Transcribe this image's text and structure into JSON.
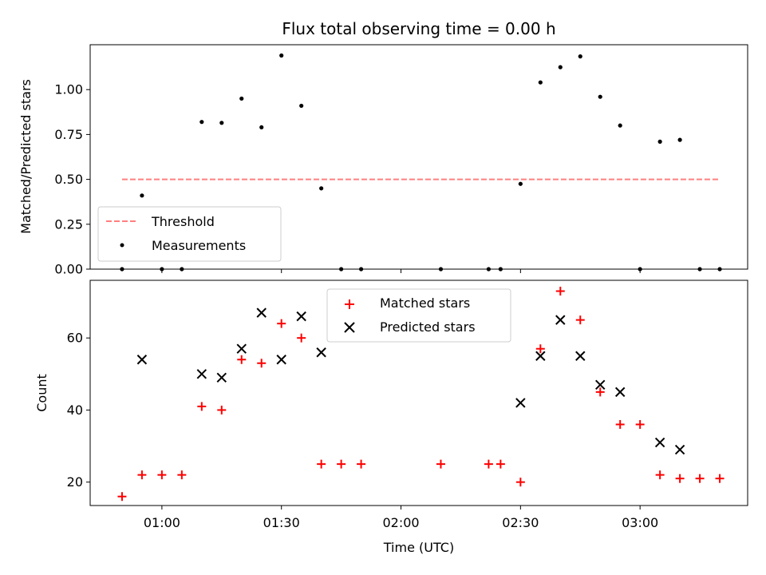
{
  "chart_data": [
    {
      "type": "scatter",
      "title": "Flux total observing time = 0.00 h",
      "ylabel": "Matched/Predicted stars",
      "xlabel": "",
      "ylim": [
        0,
        1.25
      ],
      "xlim": [
        "00:42",
        "03:27"
      ],
      "yticks": [
        0.0,
        0.25,
        0.5,
        0.75,
        1.0
      ],
      "ytick_labels": [
        "0.00",
        "0.25",
        "0.50",
        "0.75",
        "1.00"
      ],
      "grid": false,
      "legend_position": "lower-left",
      "threshold": {
        "name": "Threshold",
        "value": 0.5,
        "x_start": "00:50",
        "x_end": "03:20",
        "color": "#ff7f7f",
        "style": "dashed"
      },
      "series": [
        {
          "name": "Measurements",
          "color": "#000000",
          "marker": "dot",
          "x": [
            "00:50",
            "00:55",
            "01:00",
            "01:05",
            "01:10",
            "01:15",
            "01:20",
            "01:25",
            "01:30",
            "01:35",
            "01:40",
            "01:45",
            "01:50",
            "02:10",
            "02:22",
            "02:25",
            "02:30",
            "02:35",
            "02:40",
            "02:45",
            "02:50",
            "02:55",
            "03:00",
            "03:05",
            "03:10",
            "03:15",
            "03:20"
          ],
          "y": [
            0.0,
            0.41,
            0.0,
            0.0,
            0.82,
            0.815,
            0.95,
            0.79,
            1.19,
            0.91,
            0.45,
            0.0,
            0.0,
            0.0,
            0.0,
            0.0,
            0.475,
            1.04,
            1.125,
            1.185,
            0.96,
            0.8,
            0.0,
            0.71,
            0.72,
            0.0,
            0.0
          ]
        }
      ]
    },
    {
      "type": "scatter",
      "title": "",
      "ylabel": "Count",
      "xlabel": "Time (UTC)",
      "ylim": [
        13.5,
        76
      ],
      "xlim": [
        "00:42",
        "03:27"
      ],
      "yticks": [
        20,
        40,
        60
      ],
      "ytick_labels": [
        "20",
        "40",
        "60"
      ],
      "xticks": [
        "01:00",
        "01:30",
        "02:00",
        "02:30",
        "03:00"
      ],
      "grid": false,
      "legend_position": "upper-center",
      "series": [
        {
          "name": "Matched stars",
          "color": "#ff0000",
          "marker": "plus",
          "x": [
            "00:50",
            "00:55",
            "01:00",
            "01:05",
            "01:10",
            "01:15",
            "01:20",
            "01:25",
            "01:30",
            "01:35",
            "01:40",
            "01:45",
            "01:50",
            "02:10",
            "02:22",
            "02:25",
            "02:30",
            "02:35",
            "02:40",
            "02:45",
            "02:50",
            "02:55",
            "03:00",
            "03:05",
            "03:10",
            "03:15",
            "03:20"
          ],
          "y": [
            16,
            22,
            22,
            22,
            41,
            40,
            54,
            53,
            64,
            60,
            25,
            25,
            25,
            25,
            25,
            25,
            20,
            57,
            73,
            65,
            45,
            36,
            36,
            22,
            21,
            21,
            21
          ]
        },
        {
          "name": "Predicted stars",
          "color": "#000000",
          "marker": "x",
          "x": [
            "00:55",
            "01:10",
            "01:15",
            "01:20",
            "01:25",
            "01:30",
            "01:35",
            "01:40",
            "02:30",
            "02:35",
            "02:40",
            "02:45",
            "02:50",
            "02:55",
            "03:05",
            "03:10"
          ],
          "y": [
            54,
            50,
            49,
            57,
            67,
            54,
            66,
            56,
            42,
            55,
            65,
            55,
            47,
            45,
            31,
            29
          ]
        }
      ]
    }
  ]
}
